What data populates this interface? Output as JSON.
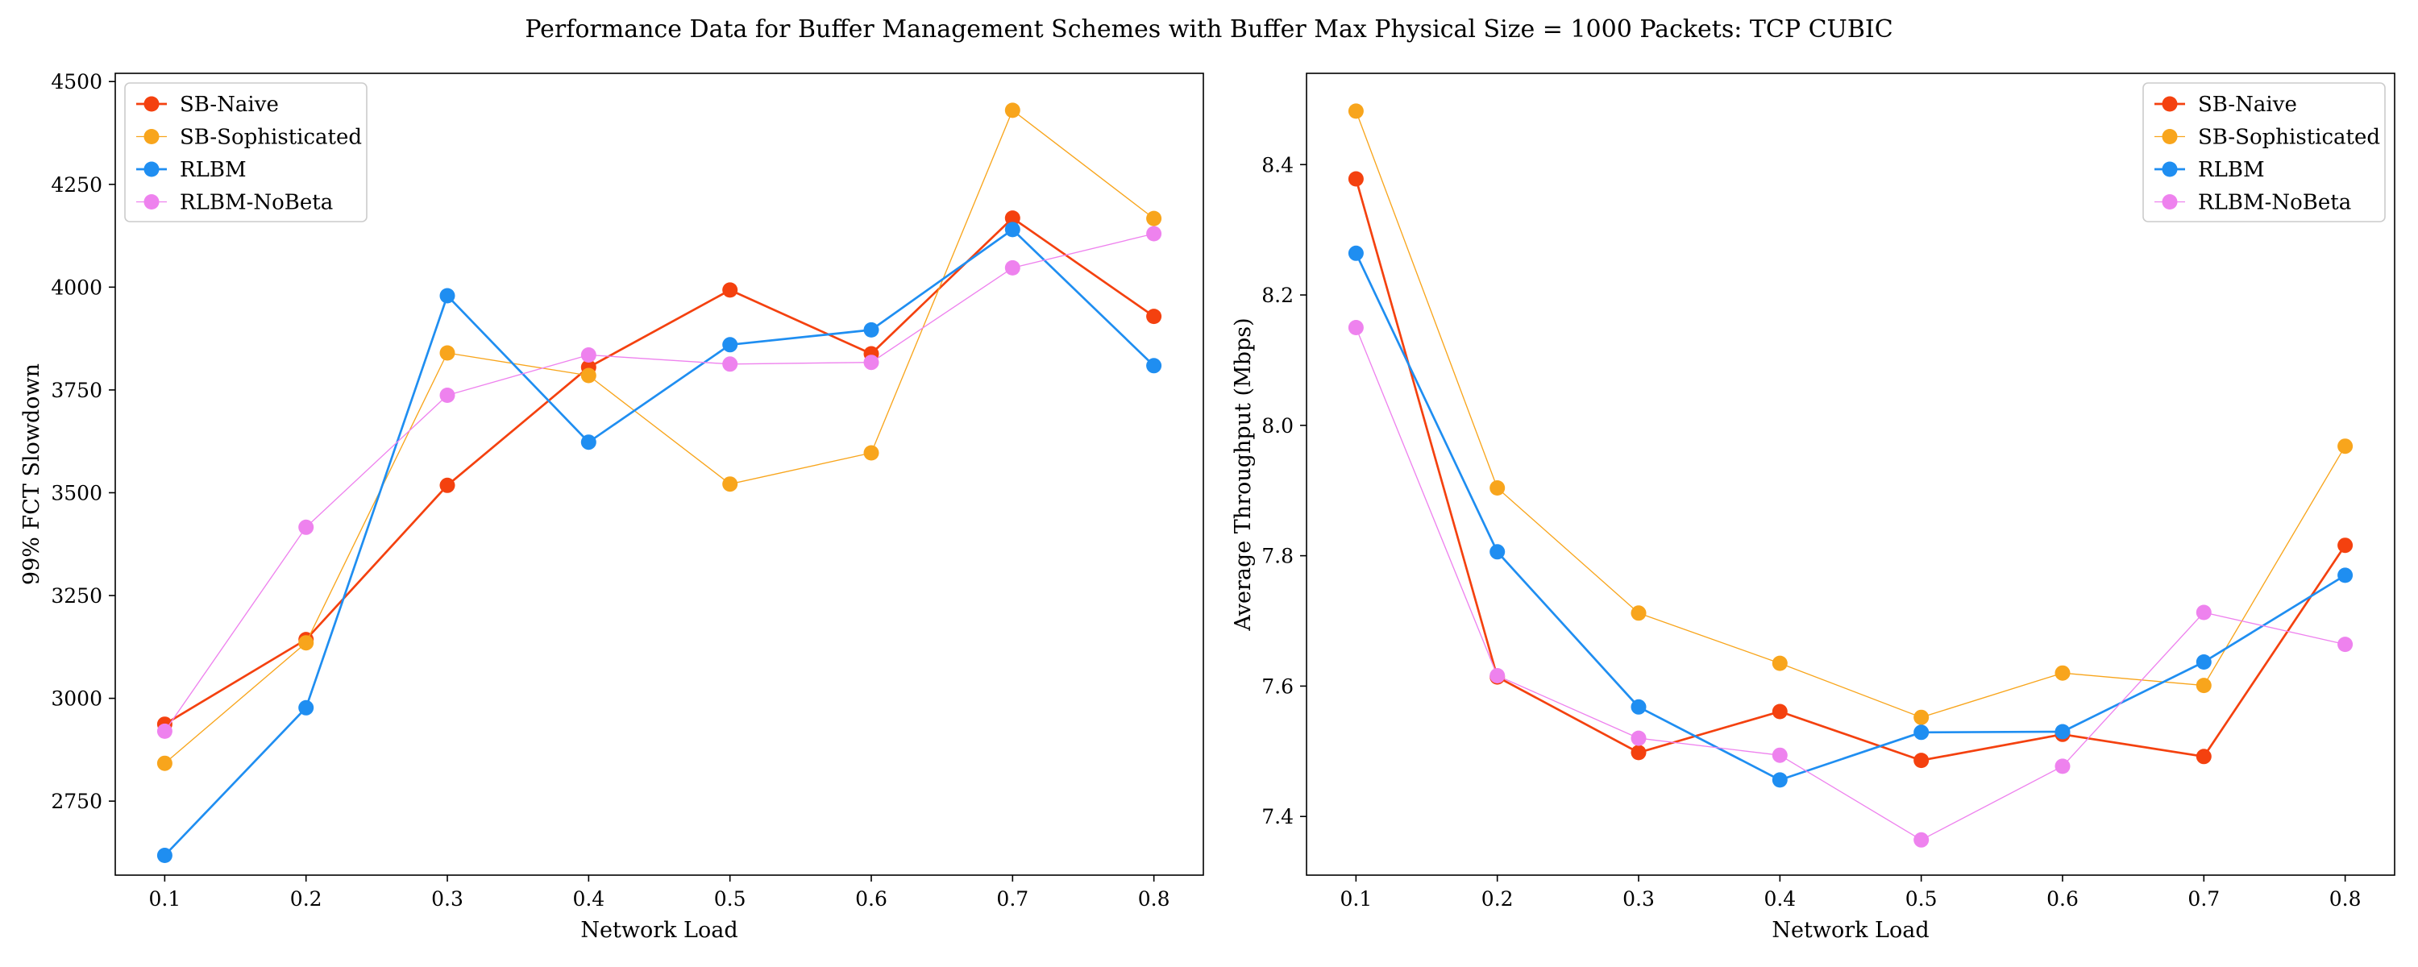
{
  "figure": {
    "title": "Performance Data for Buffer Management Schemes with Buffer Max Physical Size = 1000 Packets: TCP CUBIC"
  },
  "chart_data": [
    {
      "type": "line",
      "title": "",
      "xlabel": "Network Load",
      "ylabel": "99% FCT Slowdown",
      "x": [
        0.1,
        0.2,
        0.3,
        0.4,
        0.5,
        0.6,
        0.7,
        0.8
      ],
      "x_tick_labels": [
        "0.1",
        "0.2",
        "0.3",
        "0.4",
        "0.5",
        "0.6",
        "0.7",
        "0.8"
      ],
      "xlim": [
        0.065,
        0.835
      ],
      "ylim": [
        2570,
        4520
      ],
      "y_ticks": [
        2750,
        3000,
        3250,
        3500,
        3750,
        4000,
        4250,
        4500
      ],
      "y_tick_labels": [
        "2750",
        "3000",
        "3250",
        "3500",
        "3750",
        "4000",
        "4250",
        "4500"
      ],
      "grid": false,
      "legend_position": "top-left",
      "series": [
        {
          "name": "SB-Naive",
          "color": "#f4410f",
          "line_width": 1.4,
          "values": [
            2937,
            3143,
            3518,
            3805,
            3993,
            3838,
            4168,
            3929
          ]
        },
        {
          "name": "SB-Sophisticated",
          "color": "#f8a51c",
          "line_width": 0.7,
          "values": [
            2842,
            3135,
            3840,
            3785,
            3521,
            3597,
            4430,
            4167
          ]
        },
        {
          "name": "RLBM",
          "color": "#1f8ef1",
          "line_width": 1.4,
          "values": [
            2618,
            2977,
            3979,
            3623,
            3860,
            3896,
            4140,
            3809
          ]
        },
        {
          "name": "RLBM-NoBeta",
          "color": "#ee82ee",
          "line_width": 0.7,
          "values": [
            2920,
            3416,
            3737,
            3835,
            3813,
            3817,
            4047,
            4130
          ]
        }
      ]
    },
    {
      "type": "line",
      "title": "",
      "xlabel": "Network Load",
      "ylabel": "Average Throughput (Mbps)",
      "x": [
        0.1,
        0.2,
        0.3,
        0.4,
        0.5,
        0.6,
        0.7,
        0.8
      ],
      "x_tick_labels": [
        "0.1",
        "0.2",
        "0.3",
        "0.4",
        "0.5",
        "0.6",
        "0.7",
        "0.8"
      ],
      "xlim": [
        0.065,
        0.835
      ],
      "ylim": [
        7.31,
        8.54
      ],
      "y_ticks": [
        7.4,
        7.6,
        7.8,
        8.0,
        8.2,
        8.4
      ],
      "y_tick_labels": [
        "7.4",
        "7.6",
        "7.8",
        "8.0",
        "8.2",
        "8.4"
      ],
      "grid": false,
      "legend_position": "top-right",
      "series": [
        {
          "name": "SB-Naive",
          "color": "#f4410f",
          "line_width": 1.4,
          "values": [
            8.378,
            7.614,
            7.498,
            7.561,
            7.486,
            7.526,
            7.492,
            7.816
          ]
        },
        {
          "name": "SB-Sophisticated",
          "color": "#f8a51c",
          "line_width": 0.7,
          "values": [
            8.482,
            7.904,
            7.712,
            7.635,
            7.552,
            7.62,
            7.601,
            7.968
          ]
        },
        {
          "name": "RLBM",
          "color": "#1f8ef1",
          "line_width": 1.4,
          "values": [
            8.264,
            7.806,
            7.568,
            7.456,
            7.529,
            7.53,
            7.637,
            7.77
          ]
        },
        {
          "name": "RLBM-NoBeta",
          "color": "#ee82ee",
          "line_width": 0.7,
          "values": [
            8.15,
            7.616,
            7.52,
            7.494,
            7.364,
            7.477,
            7.713,
            7.664
          ]
        }
      ]
    }
  ]
}
